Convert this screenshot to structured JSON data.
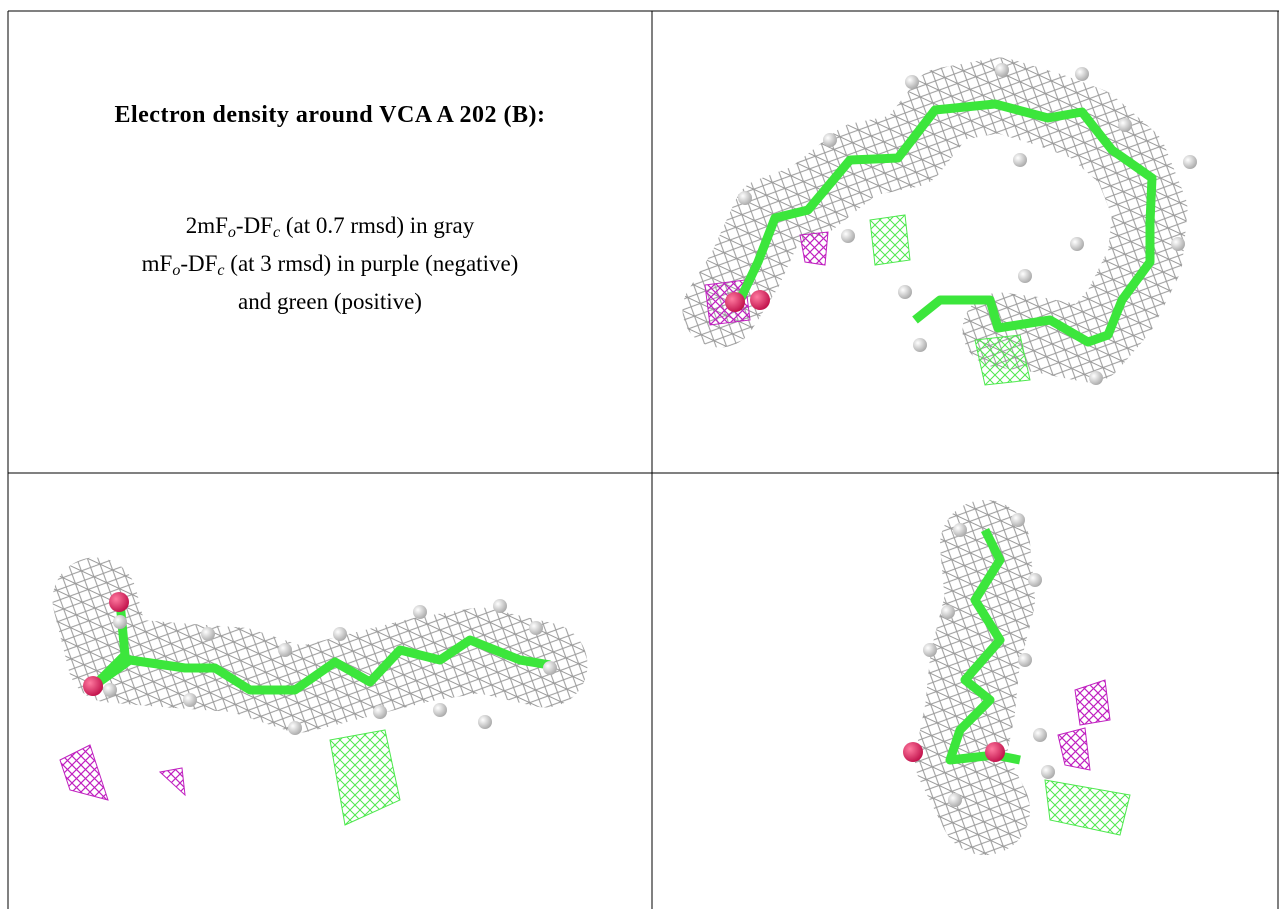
{
  "title": "Electron density around VCA A 202 (B):",
  "legend": {
    "lines": [
      [
        {
          "text": "2mF"
        },
        {
          "sub": "o"
        },
        {
          "text": "-DF"
        },
        {
          "sub": "c"
        },
        {
          "text": " (at 0.7 rmsd) in gray"
        }
      ],
      [
        {
          "text": "mF"
        },
        {
          "sub": "o"
        },
        {
          "text": "-DF"
        },
        {
          "sub": "c"
        },
        {
          "text": " (at 3 rmsd) in purple (negative)"
        }
      ],
      [
        {
          "text": "and green (positive)"
        }
      ]
    ]
  }
}
